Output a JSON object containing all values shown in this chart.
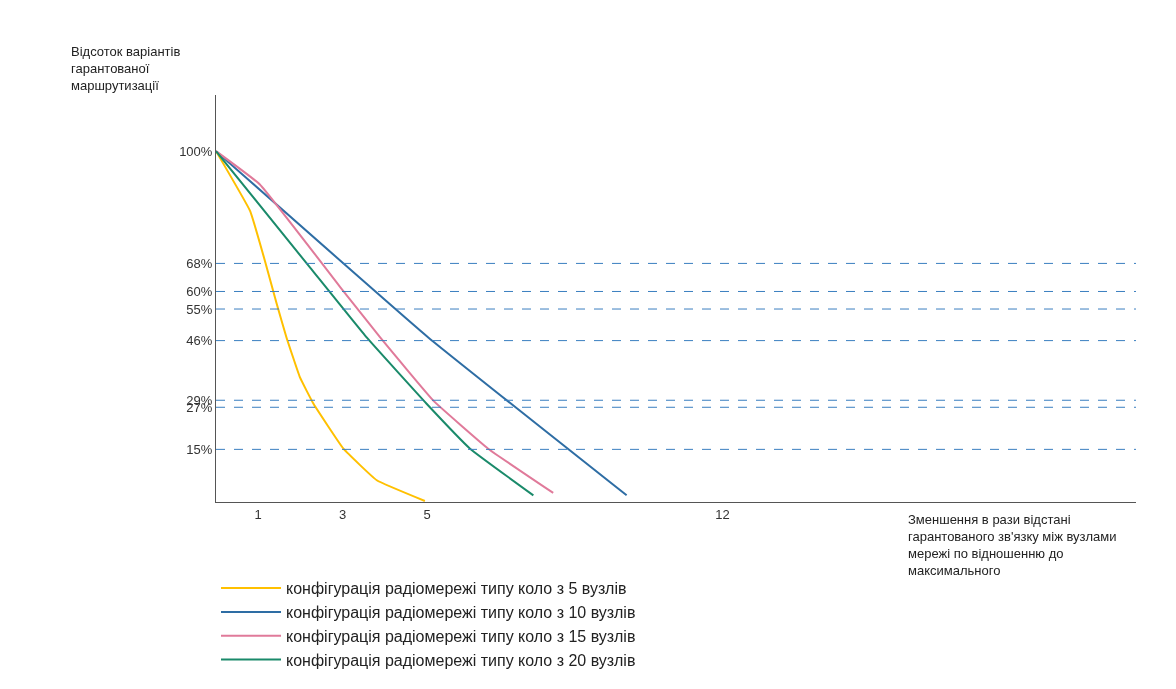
{
  "chart_data": {
    "type": "line",
    "xlabel": "Зменшення в рази відстані гарантованого зв'язку між вузлами мережі по відношенню до максимального",
    "ylabel": "Відсоток варіантів гарантованої маршрутизації",
    "xlim": [
      0,
      21.8
    ],
    "ylim": [
      0,
      116
    ],
    "xticks": [
      1,
      3,
      5,
      12
    ],
    "yticks": [
      {
        "value": 100,
        "label": "100%"
      },
      {
        "value": 68,
        "label": "68%"
      },
      {
        "value": 60,
        "label": "60%"
      },
      {
        "value": 55,
        "label": "55%"
      },
      {
        "value": 46,
        "label": "46%"
      },
      {
        "value": 29,
        "label": "29%"
      },
      {
        "value": 27,
        "label": "27%"
      },
      {
        "value": 15,
        "label": "15%"
      }
    ],
    "series": [
      {
        "name": "конфігурація радіомережі типу коло з 5 вузлів",
        "color": "#ffc000",
        "x": [
          0,
          0.81,
          1.16,
          1.44,
          1.67,
          1.99,
          2.31,
          3.02,
          3.81,
          4.95
        ],
        "values": [
          100,
          82.9,
          68.7,
          56.4,
          46.9,
          35.5,
          28,
          15.2,
          6.2,
          0.3
        ]
      },
      {
        "name": "конфігурація радіомережі типу коло з 10 вузлів",
        "color": "#2e6da4",
        "x": [
          0,
          5.03,
          9.73
        ],
        "values": [
          100,
          46.9,
          1.9
        ]
      },
      {
        "name": "конфігурація радіомережі типу коло з 15 вузлів",
        "color": "#e07a9a",
        "x": [
          0,
          1.04,
          2.98,
          3.89,
          5.15,
          6.45,
          7.99
        ],
        "values": [
          100,
          90.5,
          60.7,
          46.9,
          28.9,
          15.2,
          2.6
        ]
      },
      {
        "name": "конфігурація радіомережі типу коло з 20 вузлів",
        "color": "#1a8a6a",
        "x": [
          0,
          2.23,
          3.57,
          4.99,
          6.02,
          7.52
        ],
        "values": [
          100,
          66.8,
          46.9,
          28,
          15.2,
          1.9
        ]
      }
    ],
    "ref_lines": [
      {
        "axis": "y",
        "value": 68,
        "color": "#3a7fc0",
        "line_style": "dashed"
      },
      {
        "axis": "y",
        "value": 60,
        "color": "#3a7fc0",
        "line_style": "dashed"
      },
      {
        "axis": "y",
        "value": 55,
        "color": "#3a7fc0",
        "line_style": "dashed"
      },
      {
        "axis": "y",
        "value": 46,
        "color": "#3a7fc0",
        "line_style": "dashed"
      },
      {
        "axis": "y",
        "value": 29,
        "color": "#3a7fc0",
        "line_style": "dashed"
      },
      {
        "axis": "y",
        "value": 27,
        "color": "#3a7fc0",
        "line_style": "dashed"
      },
      {
        "axis": "y",
        "value": 15,
        "color": "#3a7fc0",
        "line_style": "dashed"
      }
    ],
    "legend": "bottom",
    "line_style": "solid"
  }
}
